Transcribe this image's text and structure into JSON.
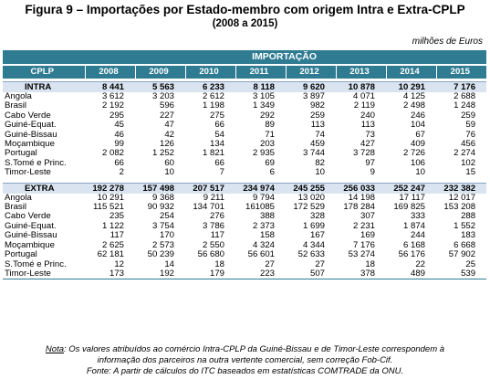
{
  "title": "Figura 9 – Importações por Estado-membro com origem Intra e Extra-CPLP",
  "subtitle": "(2008 a 2015)",
  "unit": "milhões de Euros",
  "table": {
    "group_header": "IMPORTAÇÃO",
    "corner_label": "CPLP",
    "years": [
      "2008",
      "2009",
      "2010",
      "2011",
      "2012",
      "2013",
      "2014",
      "2015"
    ],
    "intra": {
      "label": "INTRA",
      "totals": [
        "8 441",
        "5 563",
        "6 233",
        "8 118",
        "9 620",
        "10 878",
        "10 291",
        "7 176"
      ],
      "rows": [
        {
          "name": "Angola",
          "values": [
            "3 612",
            "3 203",
            "2 612",
            "3 105",
            "3 897",
            "4 071",
            "4 125",
            "2 688"
          ]
        },
        {
          "name": "Brasil",
          "values": [
            "2 192",
            "596",
            "1 198",
            "1 349",
            "982",
            "2 119",
            "2 498",
            "1 248"
          ]
        },
        {
          "name": "Cabo Verde",
          "values": [
            "295",
            "227",
            "275",
            "292",
            "259",
            "240",
            "246",
            "259"
          ]
        },
        {
          "name": "Guiné-Equat.",
          "values": [
            "45",
            "47",
            "66",
            "89",
            "113",
            "113",
            "104",
            "59"
          ]
        },
        {
          "name": "Guiné-Bissau",
          "values": [
            "46",
            "42",
            "54",
            "71",
            "74",
            "73",
            "67",
            "76"
          ]
        },
        {
          "name": "Moçambique",
          "values": [
            "99",
            "126",
            "134",
            "203",
            "459",
            "427",
            "409",
            "456"
          ]
        },
        {
          "name": "Portugal",
          "values": [
            "2 082",
            "1 252",
            "1 821",
            "2 935",
            "3 744",
            "3 728",
            "2 726",
            "2 274"
          ]
        },
        {
          "name": "S.Tomé e Princ.",
          "values": [
            "66",
            "60",
            "66",
            "69",
            "82",
            "97",
            "106",
            "102"
          ]
        },
        {
          "name": "Timor-Leste",
          "values": [
            "2",
            "10",
            "7",
            "6",
            "10",
            "9",
            "10",
            "15"
          ]
        }
      ]
    },
    "extra": {
      "label": "EXTRA",
      "totals": [
        "192 278",
        "157 498",
        "207 517",
        "234 974",
        "245 255",
        "256 033",
        "252 247",
        "232 382"
      ],
      "rows": [
        {
          "name": "Angola",
          "values": [
            "10 291",
            "9 368",
            "9 211",
            "9 794",
            "13 020",
            "14 198",
            "17 117",
            "12 017"
          ]
        },
        {
          "name": "Brasil",
          "values": [
            "115 521",
            "90 932",
            "134 701",
            "161085",
            "172 529",
            "178 284",
            "169 825",
            "153 208"
          ]
        },
        {
          "name": "Cabo Verde",
          "values": [
            "235",
            "254",
            "276",
            "388",
            "328",
            "307",
            "333",
            "288"
          ]
        },
        {
          "name": "Guiné-Equat.",
          "values": [
            "1 122",
            "3 754",
            "3 786",
            "2 373",
            "1 699",
            "2 231",
            "1 874",
            "1 552"
          ]
        },
        {
          "name": "Guiné-Bissau",
          "values": [
            "117",
            "170",
            "117",
            "158",
            "167",
            "169",
            "244",
            "183"
          ]
        },
        {
          "name": "Moçambique",
          "values": [
            "2 625",
            "2 573",
            "2 550",
            "4 324",
            "4 344",
            "7 176",
            "6 168",
            "6 668"
          ]
        },
        {
          "name": "Portugal",
          "values": [
            "62 181",
            "50 239",
            "56 680",
            "56 601",
            "52 633",
            "53 274",
            "56 176",
            "57 902"
          ]
        },
        {
          "name": "S.Tomé e Princ.",
          "values": [
            "12",
            "14",
            "18",
            "27",
            "27",
            "18",
            "22",
            "25"
          ]
        },
        {
          "name": "Timor-Leste",
          "values": [
            "173",
            "192",
            "179",
            "223",
            "507",
            "378",
            "489",
            "539"
          ]
        }
      ]
    }
  },
  "notes": {
    "note_label": "Nota",
    "note_text": ": Os valores atribuídos ao comércio Intra-CPLP da Guiné-Bissau e de Timor-Leste correspondem à",
    "note_line2": "informação dos parceiros na outra vertente comercial, sem correção Fob-Cif.",
    "source": "Fonte: A partir de cálculos do ITC baseados em estatísticas COMTRADE da ONU."
  }
}
